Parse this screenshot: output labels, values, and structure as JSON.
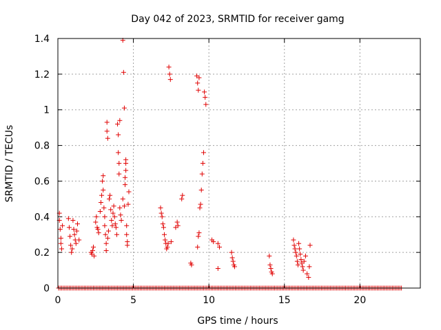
{
  "chart_data": {
    "type": "scatter",
    "title": "Day 042 of 2023, SRMTID for receiver gamg",
    "xlabel": "GPS time / hours",
    "ylabel": "SRMTID / TECUs",
    "xlim": [
      0,
      24
    ],
    "ylim": [
      0,
      1.4
    ],
    "xticks": [
      0,
      5,
      10,
      15,
      20
    ],
    "xtick_labels": [
      "0",
      "5",
      "10",
      "15",
      "20"
    ],
    "yticks": [
      0,
      0.2,
      0.4,
      0.6,
      0.8,
      1.0,
      1.2,
      1.4
    ],
    "ytick_labels": [
      "0",
      "0.2",
      "0.4",
      "0.6",
      "0.8",
      "1",
      "1.2",
      "1.4"
    ],
    "grid": true,
    "marker": "+",
    "color": "#e00000",
    "series": [
      {
        "name": "SRMTID",
        "points": [
          [
            0.1,
            0.42
          ],
          [
            0.1,
            0.38
          ],
          [
            0.15,
            0.33
          ],
          [
            0.2,
            0.28
          ],
          [
            0.2,
            0.25
          ],
          [
            0.25,
            0.22
          ],
          [
            0.3,
            0.35
          ],
          [
            0.7,
            0.39
          ],
          [
            0.75,
            0.34
          ],
          [
            0.8,
            0.29
          ],
          [
            0.85,
            0.24
          ],
          [
            0.9,
            0.2
          ],
          [
            0.95,
            0.22
          ],
          [
            1.0,
            0.38
          ],
          [
            1.05,
            0.33
          ],
          [
            1.1,
            0.3
          ],
          [
            1.15,
            0.27
          ],
          [
            1.2,
            0.25
          ],
          [
            1.25,
            0.32
          ],
          [
            1.3,
            0.36
          ],
          [
            1.4,
            0.27
          ],
          [
            2.2,
            0.2
          ],
          [
            2.25,
            0.19
          ],
          [
            2.3,
            0.21
          ],
          [
            2.35,
            0.23
          ],
          [
            2.4,
            0.18
          ],
          [
            2.5,
            0.37
          ],
          [
            2.55,
            0.4
          ],
          [
            2.6,
            0.34
          ],
          [
            2.65,
            0.33
          ],
          [
            2.7,
            0.31
          ],
          [
            2.8,
            0.43
          ],
          [
            2.85,
            0.48
          ],
          [
            2.9,
            0.52
          ],
          [
            2.95,
            0.6
          ],
          [
            3.0,
            0.63
          ],
          [
            3.0,
            0.55
          ],
          [
            3.05,
            0.45
          ],
          [
            3.1,
            0.4
          ],
          [
            3.1,
            0.35
          ],
          [
            3.15,
            0.3
          ],
          [
            3.2,
            0.25
          ],
          [
            3.2,
            0.21
          ],
          [
            3.25,
            0.93
          ],
          [
            3.25,
            0.88
          ],
          [
            3.3,
            0.84
          ],
          [
            3.3,
            0.28
          ],
          [
            3.35,
            0.32
          ],
          [
            3.4,
            0.5
          ],
          [
            3.45,
            0.52
          ],
          [
            3.5,
            0.44
          ],
          [
            3.55,
            0.38
          ],
          [
            3.6,
            0.35
          ],
          [
            3.65,
            0.42
          ],
          [
            3.7,
            0.46
          ],
          [
            3.75,
            0.4
          ],
          [
            3.8,
            0.36
          ],
          [
            3.85,
            0.34
          ],
          [
            3.9,
            0.3
          ],
          [
            3.95,
            0.92
          ],
          [
            4.0,
            0.86
          ],
          [
            4.0,
            0.76
          ],
          [
            4.05,
            0.7
          ],
          [
            4.05,
            0.64
          ],
          [
            4.1,
            0.94
          ],
          [
            4.1,
            0.45
          ],
          [
            4.15,
            0.41
          ],
          [
            4.2,
            0.38
          ],
          [
            4.3,
            1.39
          ],
          [
            4.3,
            0.5
          ],
          [
            4.35,
            1.21
          ],
          [
            4.4,
            1.01
          ],
          [
            4.45,
            0.62
          ],
          [
            4.5,
            0.72
          ],
          [
            4.5,
            0.7
          ],
          [
            4.55,
            0.35
          ],
          [
            4.55,
            0.3
          ],
          [
            4.6,
            0.26
          ],
          [
            4.6,
            0.24
          ],
          [
            4.65,
            0.47
          ],
          [
            4.7,
            0.54
          ],
          [
            4.4,
            0.46
          ],
          [
            4.45,
            0.58
          ],
          [
            4.5,
            0.66
          ],
          [
            6.8,
            0.45
          ],
          [
            6.85,
            0.42
          ],
          [
            6.9,
            0.4
          ],
          [
            6.95,
            0.36
          ],
          [
            7.0,
            0.34
          ],
          [
            7.05,
            0.3
          ],
          [
            7.1,
            0.27
          ],
          [
            7.15,
            0.25
          ],
          [
            7.2,
            0.22
          ],
          [
            7.25,
            0.23
          ],
          [
            7.3,
            0.25
          ],
          [
            7.35,
            1.24
          ],
          [
            7.4,
            1.2
          ],
          [
            7.45,
            1.17
          ],
          [
            7.5,
            0.26
          ],
          [
            7.8,
            0.34
          ],
          [
            7.9,
            0.37
          ],
          [
            7.95,
            0.35
          ],
          [
            8.2,
            0.5
          ],
          [
            8.25,
            0.52
          ],
          [
            8.8,
            0.14
          ],
          [
            8.85,
            0.13
          ],
          [
            9.2,
            1.19
          ],
          [
            9.25,
            1.15
          ],
          [
            9.3,
            1.11
          ],
          [
            9.35,
            1.18
          ],
          [
            9.4,
            0.45
          ],
          [
            9.45,
            0.47
          ],
          [
            9.5,
            0.55
          ],
          [
            9.55,
            0.64
          ],
          [
            9.6,
            0.7
          ],
          [
            9.65,
            0.76
          ],
          [
            9.7,
            1.1
          ],
          [
            9.75,
            1.07
          ],
          [
            9.8,
            1.03
          ],
          [
            9.3,
            0.29
          ],
          [
            9.35,
            0.31
          ],
          [
            9.25,
            0.23
          ],
          [
            10.2,
            0.27
          ],
          [
            10.3,
            0.26
          ],
          [
            10.6,
            0.25
          ],
          [
            10.7,
            0.23
          ],
          [
            10.6,
            0.11
          ],
          [
            11.5,
            0.2
          ],
          [
            11.55,
            0.17
          ],
          [
            11.6,
            0.15
          ],
          [
            11.65,
            0.13
          ],
          [
            11.7,
            0.12
          ],
          [
            14.0,
            0.18
          ],
          [
            14.05,
            0.13
          ],
          [
            14.1,
            0.11
          ],
          [
            14.15,
            0.09
          ],
          [
            14.2,
            0.08
          ],
          [
            15.6,
            0.27
          ],
          [
            15.65,
            0.24
          ],
          [
            15.7,
            0.22
          ],
          [
            15.75,
            0.2
          ],
          [
            15.8,
            0.18
          ],
          [
            15.85,
            0.15
          ],
          [
            15.9,
            0.13
          ],
          [
            15.95,
            0.25
          ],
          [
            16.0,
            0.22
          ],
          [
            16.05,
            0.19
          ],
          [
            16.1,
            0.16
          ],
          [
            16.15,
            0.14
          ],
          [
            16.2,
            0.12
          ],
          [
            16.25,
            0.1
          ],
          [
            16.3,
            0.15
          ],
          [
            16.4,
            0.18
          ],
          [
            16.5,
            0.08
          ],
          [
            16.6,
            0.06
          ],
          [
            16.65,
            0.12
          ],
          [
            16.7,
            0.24
          ]
        ]
      },
      {
        "name": "zero-baseline",
        "x_start": 0.05,
        "x_end": 22.8,
        "x_step": 0.1,
        "y": 0
      }
    ]
  }
}
